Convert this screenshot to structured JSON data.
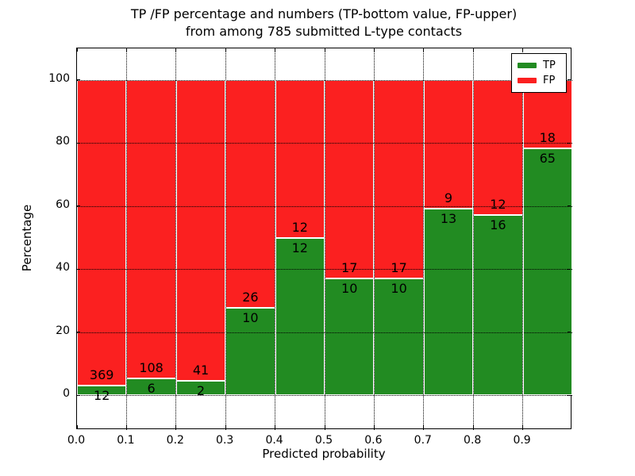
{
  "title": {
    "line1": "TP /FP percentage and numbers (TP-bottom value, FP-upper)",
    "line2": "from among 785 submitted L-type contacts"
  },
  "axes": {
    "xlabel": "Predicted probability",
    "ylabel": "Percentage",
    "x_tick_labels": [
      "0.0",
      "0.1",
      "0.2",
      "0.3",
      "0.4",
      "0.5",
      "0.6",
      "0.7",
      "0.8",
      "0.9"
    ],
    "y_tick_labels": [
      "0",
      "20",
      "40",
      "60",
      "80",
      "100"
    ]
  },
  "legend": {
    "items": [
      {
        "label": "TP",
        "color": "#228b22"
      },
      {
        "label": "FP",
        "color": "#fb2020"
      }
    ]
  },
  "chart_data": {
    "type": "bar",
    "stacking": "percent",
    "title": "TP /FP percentage and numbers (TP-bottom value, FP-upper) from among 785 submitted L-type contacts",
    "xlabel": "Predicted probability",
    "ylabel": "Percentage",
    "categories": [
      "0.0-0.1",
      "0.1-0.2",
      "0.2-0.3",
      "0.3-0.4",
      "0.4-0.5",
      "0.5-0.6",
      "0.6-0.7",
      "0.7-0.8",
      "0.8-0.9",
      "0.9-1.0"
    ],
    "series": [
      {
        "name": "TP",
        "color": "#228b22",
        "counts": [
          12,
          6,
          2,
          10,
          12,
          10,
          10,
          13,
          16,
          65
        ]
      },
      {
        "name": "FP",
        "color": "#fb2020",
        "counts": [
          369,
          108,
          41,
          26,
          12,
          17,
          17,
          9,
          12,
          18
        ]
      }
    ],
    "tp_percent_per_bin": [
      3.1,
      5.3,
      4.7,
      27.8,
      50.0,
      37.0,
      37.0,
      59.1,
      57.1,
      78.3
    ],
    "total_contacts": 785,
    "xlim": [
      0.0,
      1.0
    ],
    "ylim": [
      -11,
      110
    ],
    "x_ticks": [
      0.0,
      0.1,
      0.2,
      0.3,
      0.4,
      0.5,
      0.6,
      0.7,
      0.8,
      0.9
    ],
    "y_ticks": [
      0,
      20,
      40,
      60,
      80,
      100
    ],
    "grid": "dotted",
    "legend_position": "upper right",
    "bar_edge_color": "#ffffff"
  }
}
